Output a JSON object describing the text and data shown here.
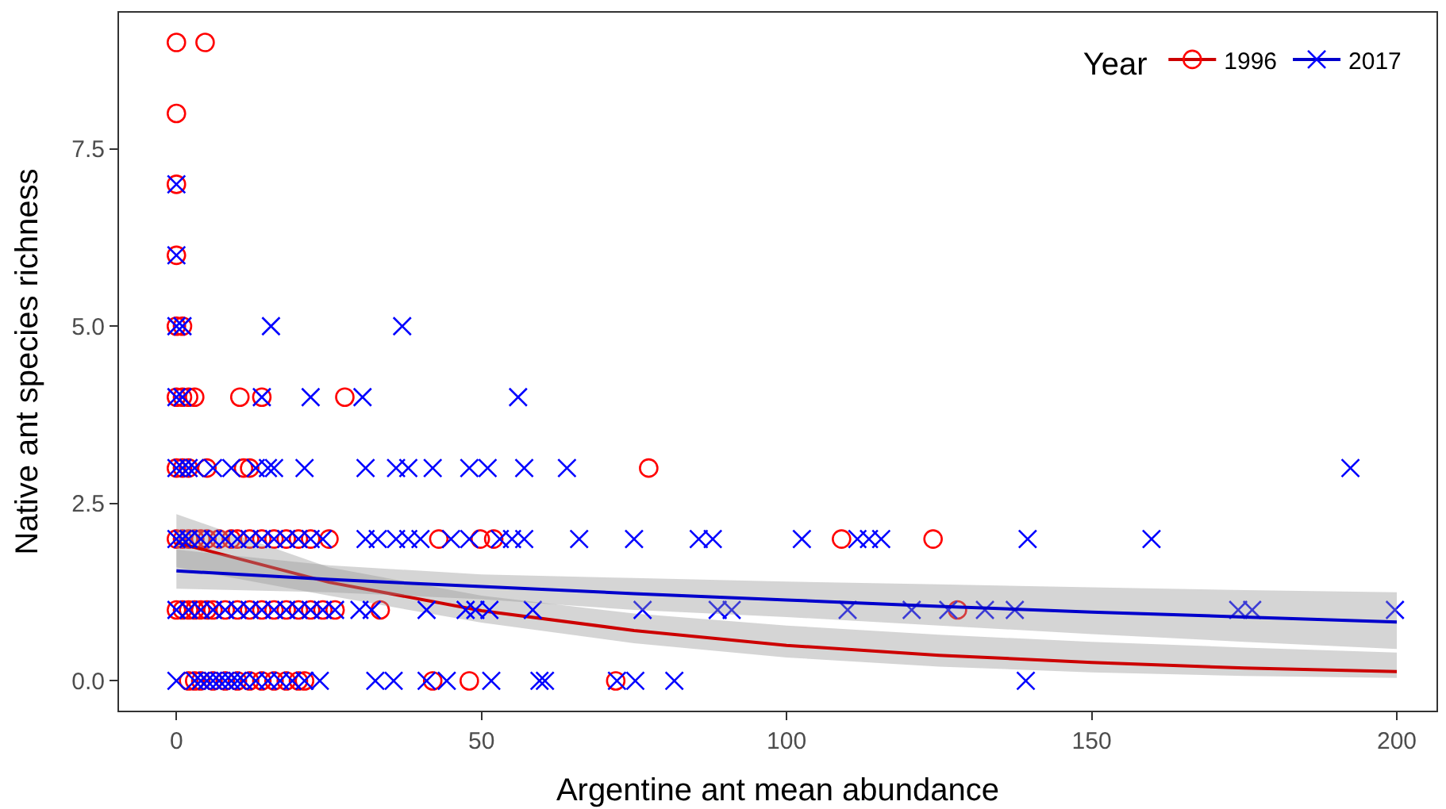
{
  "chart_data": {
    "type": "scatter",
    "xlabel": "Argentine ant mean abundance",
    "ylabel": "Native ant species richness",
    "legend_title": "Year",
    "legend": "top right",
    "xlim": [
      -9.4,
      206.5
    ],
    "ylim": [
      -0.42,
      9.42
    ],
    "xticks": [
      0,
      50,
      100,
      150,
      200
    ],
    "yticks": [
      {
        "value": 0,
        "label": "0.0"
      },
      {
        "value": 2.5,
        "label": "2.5"
      },
      {
        "value": 5,
        "label": "5.0"
      },
      {
        "value": 7.5,
        "label": "7.5"
      }
    ],
    "series": [
      {
        "name": "1996",
        "marker": "circle",
        "color": "#ff0000",
        "x": [
          0,
          4.7,
          0,
          0,
          0,
          0,
          1,
          0,
          1,
          2,
          3,
          10.4,
          14,
          27.6,
          0,
          1,
          2,
          5,
          11,
          12,
          77.4,
          0,
          1,
          2,
          3,
          4,
          5,
          7,
          9,
          10,
          12,
          14,
          16,
          18,
          20,
          22,
          25,
          43,
          49.8,
          52,
          109,
          124,
          0,
          1,
          2,
          3,
          4,
          5,
          6,
          8,
          10,
          12,
          14,
          16,
          18,
          20,
          22,
          24,
          26,
          33.4,
          128,
          2,
          3,
          4,
          6,
          8,
          10,
          12,
          14,
          16,
          18,
          20,
          21,
          42,
          48,
          72
        ],
        "values": [
          9,
          9,
          8,
          7,
          6,
          5,
          5,
          4,
          4,
          4,
          4,
          4,
          4,
          4,
          3,
          3,
          3,
          3,
          3,
          3,
          3,
          2,
          2,
          2,
          2,
          2,
          2,
          2,
          2,
          2,
          2,
          2,
          2,
          2,
          2,
          2,
          2,
          2,
          2,
          2,
          2,
          2,
          1,
          1,
          1,
          1,
          1,
          1,
          1,
          1,
          1,
          1,
          1,
          1,
          1,
          1,
          1,
          1,
          1,
          1,
          1,
          0,
          0,
          0,
          0,
          0,
          0,
          0,
          0,
          0,
          0,
          0,
          0,
          0,
          0,
          0
        ]
      },
      {
        "type": "line",
        "color": "#cc0000",
        "x": [
          0,
          25,
          50,
          75,
          100,
          125,
          150,
          175,
          200
        ],
        "values": [
          1.95,
          1.39,
          0.99,
          0.71,
          0.5,
          0.36,
          0.26,
          0.18,
          0.13
        ],
        "lower": [
          1.6,
          1.2,
          0.82,
          0.53,
          0.33,
          0.2,
          0.12,
          0.07,
          0.04
        ],
        "upper": [
          2.35,
          1.6,
          1.2,
          0.95,
          0.78,
          0.65,
          0.55,
          0.47,
          0.4
        ]
      },
      {
        "name": "2017",
        "marker": "cross",
        "color": "#0000ff",
        "x": [
          0,
          0,
          0,
          1,
          15.5,
          37,
          0,
          1,
          14,
          22,
          30.5,
          56,
          0,
          1,
          2,
          3,
          6,
          9,
          13,
          15,
          16,
          21,
          31,
          36,
          38,
          42,
          48,
          51,
          57,
          64,
          192.4,
          0,
          1,
          2,
          4,
          6,
          8,
          10,
          12,
          14,
          16,
          18,
          20,
          22,
          24,
          31,
          33,
          36,
          38,
          40,
          45,
          48,
          53,
          55,
          57,
          66,
          75,
          85.6,
          87.9,
          102.5,
          111.6,
          113.5,
          115.5,
          139.5,
          159.8,
          0,
          2,
          4,
          6,
          8,
          10,
          12,
          14,
          16,
          18,
          20,
          22,
          24,
          26,
          30,
          32,
          41,
          47.4,
          49,
          51.3,
          58.4,
          76.4,
          88.7,
          91,
          110,
          120.5,
          126.5,
          132.5,
          137.4,
          174,
          176.3,
          199.7,
          0,
          3,
          4,
          5,
          6,
          7,
          8,
          9,
          10,
          11,
          13,
          15,
          17,
          19,
          21,
          23.5,
          32.6,
          35.6,
          41,
          44.3,
          51.6,
          59.5,
          60.4,
          72.2,
          75.2,
          81.6,
          139.2
        ],
        "values": [
          7,
          6,
          5,
          5,
          5,
          5,
          4,
          4,
          4,
          4,
          4,
          4,
          3,
          3,
          3,
          3,
          3,
          3,
          3,
          3,
          3,
          3,
          3,
          3,
          3,
          3,
          3,
          3,
          3,
          3,
          3,
          2,
          2,
          2,
          2,
          2,
          2,
          2,
          2,
          2,
          2,
          2,
          2,
          2,
          2,
          2,
          2,
          2,
          2,
          2,
          2,
          2,
          2,
          2,
          2,
          2,
          2,
          2,
          2,
          2,
          2,
          2,
          2,
          2,
          2,
          1,
          1,
          1,
          1,
          1,
          1,
          1,
          1,
          1,
          1,
          1,
          1,
          1,
          1,
          1,
          1,
          1,
          1,
          1,
          1,
          1,
          1,
          1,
          1,
          1,
          1,
          1,
          1,
          1,
          1,
          1,
          1,
          0,
          0,
          0,
          0,
          0,
          0,
          0,
          0,
          0,
          0,
          0,
          0,
          0,
          0,
          0,
          0,
          0,
          0,
          0,
          0,
          0,
          0,
          0,
          0,
          0,
          0,
          0
        ]
      },
      {
        "type": "line",
        "color": "#0000cc",
        "x": [
          0,
          25,
          50,
          75,
          100,
          125,
          150,
          175,
          200
        ],
        "values": [
          1.55,
          1.43,
          1.33,
          1.23,
          1.14,
          1.05,
          0.97,
          0.9,
          0.83
        ],
        "lower": [
          1.3,
          1.25,
          1.15,
          1.0,
          0.9,
          0.78,
          0.66,
          0.55,
          0.45
        ],
        "upper": [
          1.85,
          1.63,
          1.5,
          1.45,
          1.4,
          1.36,
          1.32,
          1.28,
          1.25
        ]
      }
    ]
  }
}
